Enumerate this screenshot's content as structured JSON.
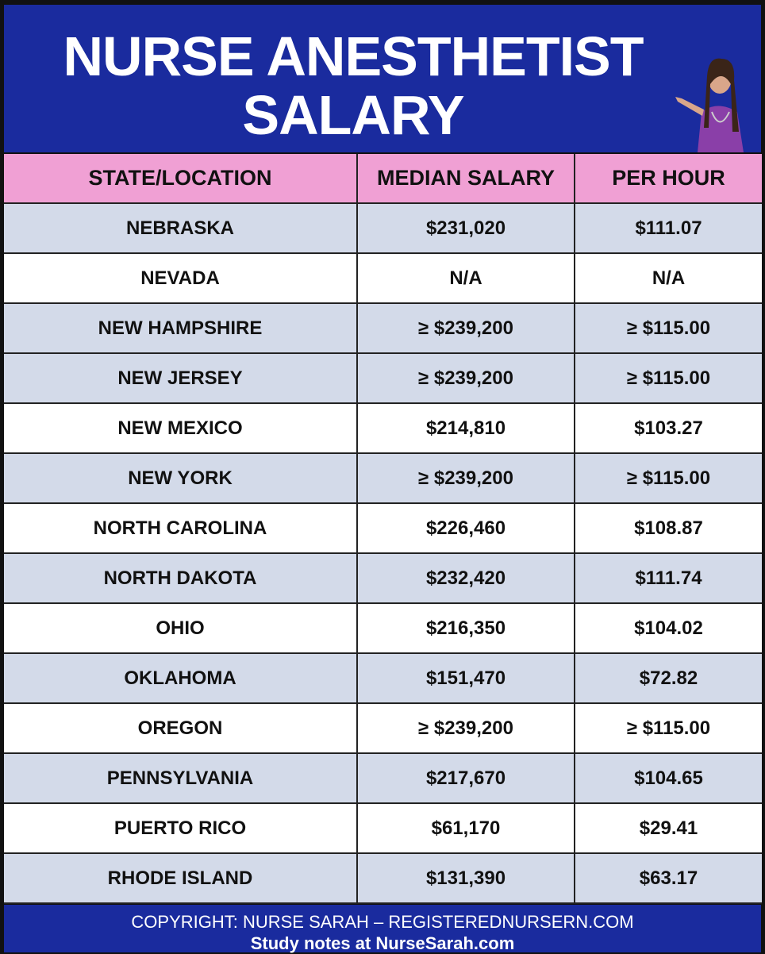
{
  "header": {
    "title_lines": [
      "NURSE ANESTHETIST",
      "SALARY"
    ]
  },
  "table": {
    "columns": [
      "STATE/LOCATION",
      "MEDIAN SALARY",
      "PER HOUR"
    ],
    "rows": [
      [
        "NEBRASKA",
        "$231,020",
        "$111.07"
      ],
      [
        "NEVADA",
        "N/A",
        "N/A"
      ],
      [
        "NEW HAMPSHIRE",
        "≥ $239,200",
        "≥ $115.00"
      ],
      [
        "NEW JERSEY",
        "≥ $239,200",
        "≥ $115.00"
      ],
      [
        "NEW MEXICO",
        "$214,810",
        "$103.27"
      ],
      [
        "NEW YORK",
        "≥ $239,200",
        "≥ $115.00"
      ],
      [
        "NORTH CAROLINA",
        "$226,460",
        "$108.87"
      ],
      [
        "NORTH DAKOTA",
        "$232,420",
        "$111.74"
      ],
      [
        "OHIO",
        "$216,350",
        "$104.02"
      ],
      [
        "OKLAHOMA",
        "$151,470",
        "$72.82"
      ],
      [
        "OREGON",
        "≥ $239,200",
        "≥ $115.00"
      ],
      [
        "PENNSYLVANIA",
        "$217,670",
        "$104.65"
      ],
      [
        "PUERTO RICO",
        "$61,170",
        "$29.41"
      ],
      [
        "RHODE ISLAND",
        "$131,390",
        "$63.17"
      ]
    ]
  },
  "footer": {
    "lines": [
      "COPYRIGHT: NURSE SARAH – REGISTEREDNURSERN.COM",
      "Study notes at NurseSarah.com"
    ]
  }
}
